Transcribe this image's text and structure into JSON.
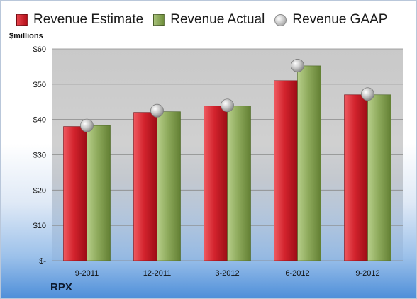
{
  "legend": {
    "estimate": "Revenue Estimate",
    "actual": "Revenue Actual",
    "gaap": "Revenue GAAP"
  },
  "unit_label": "$millions",
  "ticker": "RPX",
  "colors": {
    "estimate": "#c81e28",
    "actual": "#8aa65a",
    "gaap": "#b8b8b8"
  },
  "chart_data": {
    "type": "bar",
    "categories": [
      "9-2011",
      "12-2011",
      "3-2012",
      "6-2012",
      "9-2012"
    ],
    "series": [
      {
        "name": "Revenue Estimate",
        "values": [
          38,
          42,
          43.8,
          51,
          47
        ]
      },
      {
        "name": "Revenue Actual",
        "values": [
          38.3,
          42.2,
          43.8,
          55.2,
          47
        ]
      },
      {
        "name": "Revenue GAAP",
        "values": [
          38.3,
          42.5,
          44,
          55.3,
          47.2
        ],
        "marker": "circle"
      }
    ],
    "ylim": [
      0,
      60
    ],
    "yticks": [
      0,
      10,
      20,
      30,
      40,
      50,
      60
    ],
    "ytick_labels": [
      "$-",
      "$10",
      "$20",
      "$30",
      "$40",
      "$50",
      "$60"
    ],
    "legend_position": "top",
    "grid": true
  }
}
